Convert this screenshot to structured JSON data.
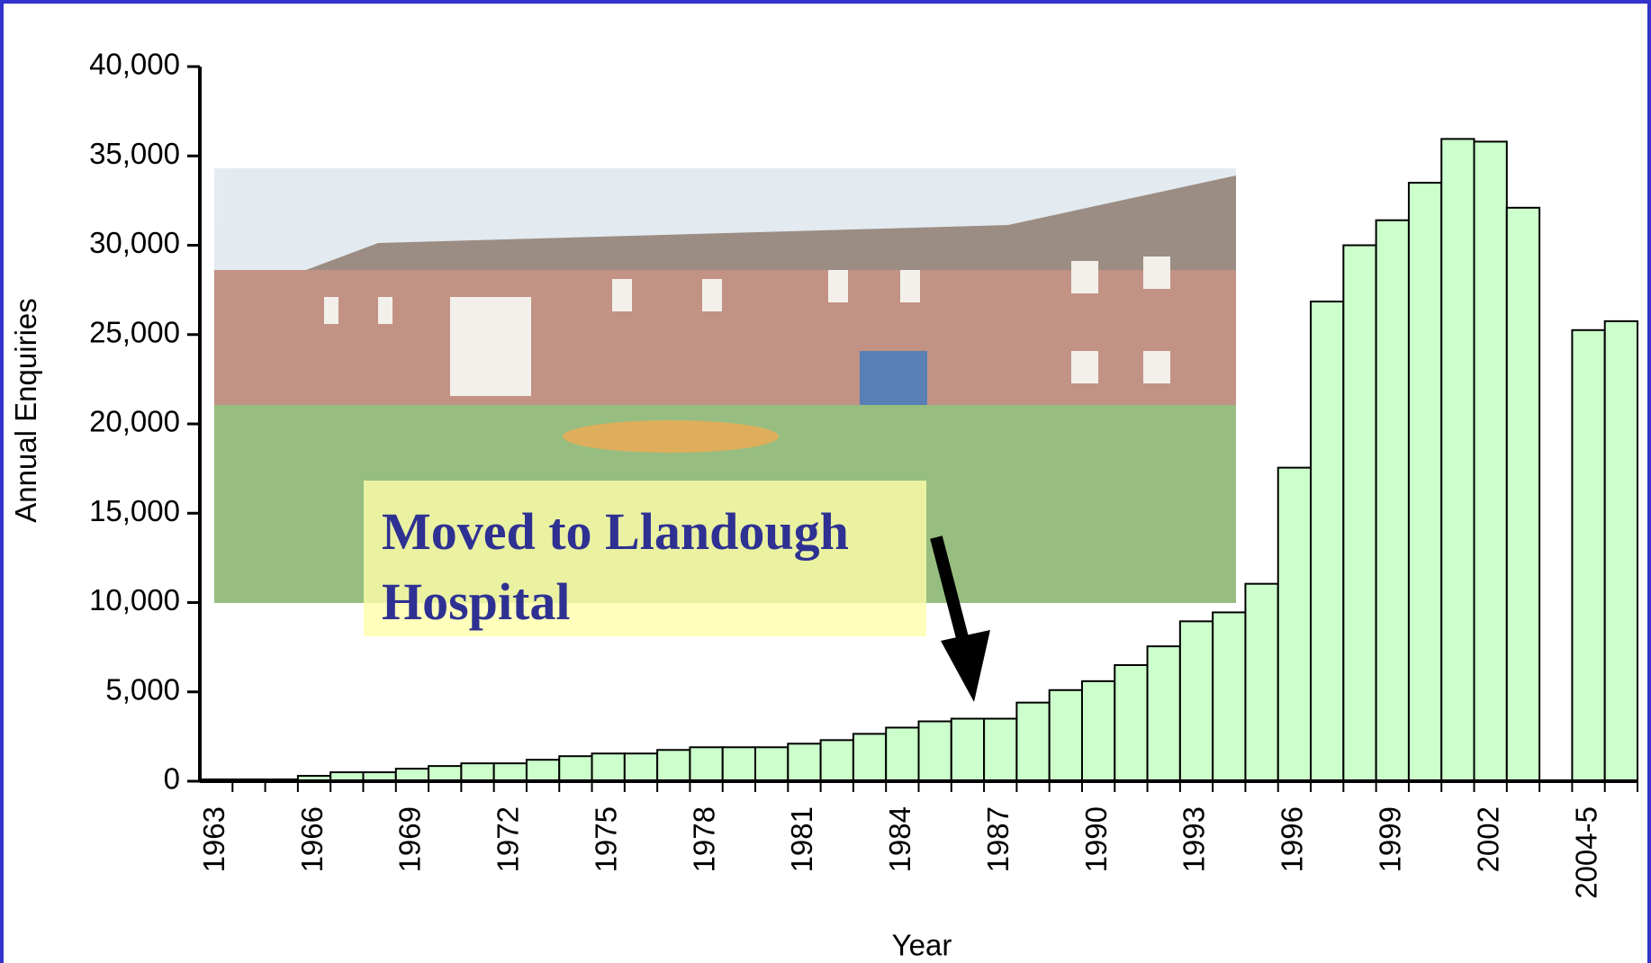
{
  "chart_data": {
    "type": "bar",
    "y_label": "Annual Enquiries",
    "x_label": "Year",
    "annotation": "Moved to Llandough Hospital",
    "categories": [
      "1963",
      null,
      null,
      "1966",
      null,
      null,
      "1969",
      null,
      null,
      "1972",
      null,
      null,
      "1975",
      null,
      null,
      "1978",
      null,
      null,
      "1981",
      null,
      null,
      "1984",
      null,
      null,
      "1987",
      null,
      null,
      "1990",
      null,
      null,
      "1993",
      null,
      null,
      "1996",
      null,
      null,
      "1999",
      null,
      null,
      "2002",
      null,
      null,
      "2004-5",
      null
    ],
    "values": [
      100,
      100,
      100,
      300,
      500,
      500,
      700,
      850,
      1000,
      1000,
      1200,
      1400,
      1550,
      1550,
      1750,
      1900,
      1900,
      1900,
      2100,
      2300,
      2650,
      3000,
      3350,
      3500,
      3500,
      4400,
      5100,
      5600,
      6500,
      7550,
      8950,
      9450,
      11050,
      17550,
      26850,
      30000,
      31400,
      33500,
      35950,
      35800,
      32100,
      null,
      25250,
      25750
    ],
    "color": "#ccffcc",
    "ylim": [
      0,
      40000
    ],
    "yticks": [
      0,
      {
        "value": 5000,
        "label": "5,000"
      },
      {
        "value": 10000,
        "label": "10,000"
      },
      {
        "value": 15000,
        "label": "15,000"
      },
      {
        "value": 20000,
        "label": "20,000"
      },
      {
        "value": 25000,
        "label": "25,000"
      },
      {
        "value": 30000,
        "label": "30,000"
      },
      {
        "value": 35000,
        "label": "35,000"
      },
      {
        "value": 40000,
        "label": "40,000"
      }
    ],
    "grid": false
  }
}
